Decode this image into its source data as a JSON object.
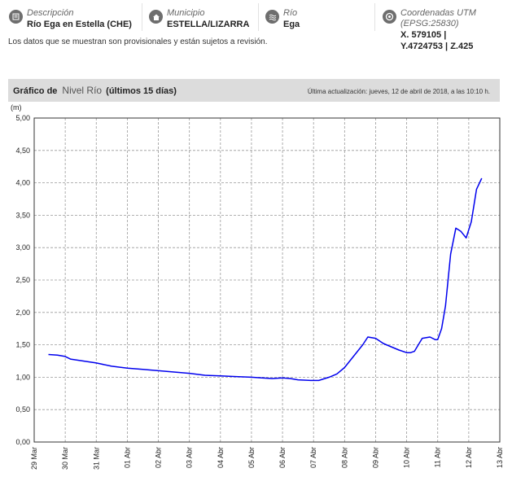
{
  "info": {
    "station": {
      "label": "Descripción",
      "value": "Río Ega en Estella (CHE)",
      "icon": "pin-icon"
    },
    "municipality": {
      "label": "Municipio",
      "value": "ESTELLA/LIZARRA",
      "icon": "home-icon"
    },
    "river": {
      "label": "Río",
      "value": "Ega",
      "icon": "waves-icon"
    },
    "coords": {
      "label": "Coordenadas UTM",
      "label2": "(EPSG:25830)",
      "x": "X. 579105 |",
      "yz": "Y.4724753 | Z.425",
      "icon": "target-icon"
    }
  },
  "notice": "Los datos que se muestran son provisionales y están sujetos a revisión.",
  "chart_header": {
    "prefix": "Gráfico de",
    "name": "Nivel Río",
    "period": "(últimos 15 días)",
    "updated": "Última actualización: jueves, 12 de abril de 2018, a las 10:10 h."
  },
  "colors": {
    "line": "#0000ee",
    "grid": "#999999",
    "header_bg": "#dcdcdc"
  },
  "chart_data": {
    "type": "line",
    "title": "Nivel Río (últimos 15 días)",
    "ylabel": "(m)",
    "ylim": [
      0,
      5
    ],
    "yticks": [
      "0,00",
      "0,50",
      "1,00",
      "1,50",
      "2,00",
      "2,50",
      "3,00",
      "3,50",
      "4,00",
      "4,50",
      "5,00"
    ],
    "xticks": [
      "29 Mar",
      "30 Mar",
      "31 Mar",
      "01 Abr",
      "02 Abr",
      "03 Abr",
      "04 Abr",
      "05 Abr",
      "06 Abr",
      "07 Abr",
      "08 Abr",
      "09 Abr",
      "10 Abr",
      "11 Abr",
      "12 Abr",
      "13 Abr"
    ],
    "xlim": [
      "2018-03-29",
      "2018-04-13"
    ],
    "grid": true,
    "series": [
      {
        "x": [
          "2018-03-29 11:00",
          "2018-03-29 18:00",
          "2018-03-30 00:00",
          "2018-03-30 04:00",
          "2018-03-30 14:00",
          "2018-03-31 00:00",
          "2018-03-31 12:00",
          "2018-04-01 00:00",
          "2018-04-01 12:00",
          "2018-04-02 00:00",
          "2018-04-02 12:00",
          "2018-04-03 00:00",
          "2018-04-03 12:00",
          "2018-04-04 00:00",
          "2018-04-04 12:00",
          "2018-04-05 00:00",
          "2018-04-05 08:00",
          "2018-04-05 16:00",
          "2018-04-06 00:00",
          "2018-04-06 06:00",
          "2018-04-06 12:00",
          "2018-04-06 22:00",
          "2018-04-07 04:00",
          "2018-04-07 12:00",
          "2018-04-07 18:00",
          "2018-04-08 00:00",
          "2018-04-08 06:00",
          "2018-04-08 10:00",
          "2018-04-08 14:00",
          "2018-04-08 18:00",
          "2018-04-09 00:00",
          "2018-04-09 06:00",
          "2018-04-09 12:00",
          "2018-04-09 18:00",
          "2018-04-10 00:00",
          "2018-04-10 03:00",
          "2018-04-10 06:00",
          "2018-04-10 12:00",
          "2018-04-10 18:00",
          "2018-04-10 22:00",
          "2018-04-11 00:00",
          "2018-04-11 03:00",
          "2018-04-11 06:00",
          "2018-04-11 10:00",
          "2018-04-11 14:00",
          "2018-04-11 18:00",
          "2018-04-11 22:00",
          "2018-04-12 02:00",
          "2018-04-12 06:00",
          "2018-04-12 10:00"
        ],
        "values": [
          1.35,
          1.34,
          1.32,
          1.28,
          1.25,
          1.22,
          1.17,
          1.14,
          1.12,
          1.1,
          1.08,
          1.06,
          1.03,
          1.02,
          1.01,
          1.0,
          0.99,
          0.98,
          0.99,
          0.98,
          0.96,
          0.95,
          0.95,
          1.0,
          1.05,
          1.15,
          1.3,
          1.4,
          1.5,
          1.62,
          1.6,
          1.52,
          1.47,
          1.42,
          1.38,
          1.38,
          1.4,
          1.6,
          1.62,
          1.58,
          1.58,
          1.75,
          2.1,
          2.9,
          3.3,
          3.25,
          3.15,
          3.4,
          3.9,
          4.07
        ]
      }
    ]
  }
}
